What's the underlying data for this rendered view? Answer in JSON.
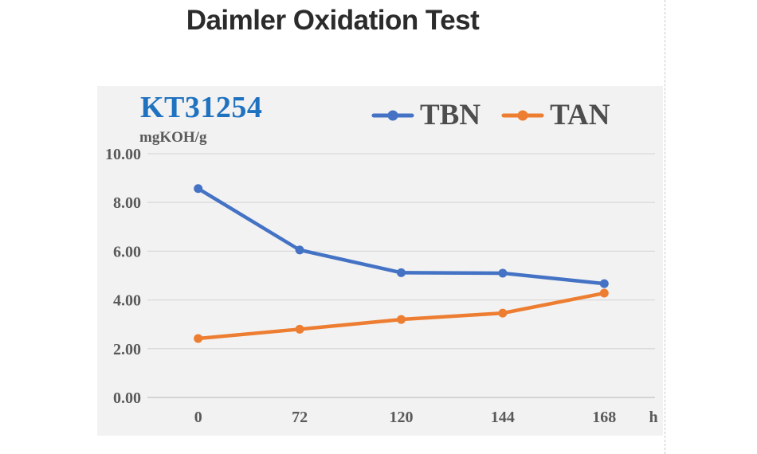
{
  "page": {
    "title": "Daimler Oxidation Test"
  },
  "panel": {
    "sample_label": "KT31254",
    "y_unit": "mgKOH/g",
    "x_unit": "h"
  },
  "colors": {
    "title_text": "#2b2b2b",
    "sample_label": "#1f72c0",
    "tbn_line": "#4472c4",
    "tan_line": "#ed7d31",
    "panel_bg": "#f2f2f2",
    "gridline": "#d9d9d9",
    "axis_line": "#c2c2c2",
    "tick_text": "#595959",
    "legend_text": "#4d4d4d",
    "guide_line": "#c9c9c9"
  },
  "chart_data": {
    "type": "line",
    "title": "Daimler Oxidation Test",
    "subtitle": "KT31254",
    "categories": [
      "0",
      "72",
      "120",
      "144",
      "168"
    ],
    "x_unit": "h",
    "xlabel": "h",
    "ylabel": "mgKOH/g",
    "ylim": [
      0,
      10
    ],
    "ytick_step": 2,
    "ytick_labels": [
      "0.00",
      "2.00",
      "4.00",
      "6.00",
      "8.00",
      "10.00"
    ],
    "grid": true,
    "legend_position": "top-center",
    "series": [
      {
        "name": "TBN",
        "color": "#4472c4",
        "values": [
          8.57,
          6.05,
          5.12,
          5.1,
          4.67
        ]
      },
      {
        "name": "TAN",
        "color": "#ed7d31",
        "values": [
          2.42,
          2.8,
          3.2,
          3.46,
          4.28
        ]
      }
    ]
  }
}
